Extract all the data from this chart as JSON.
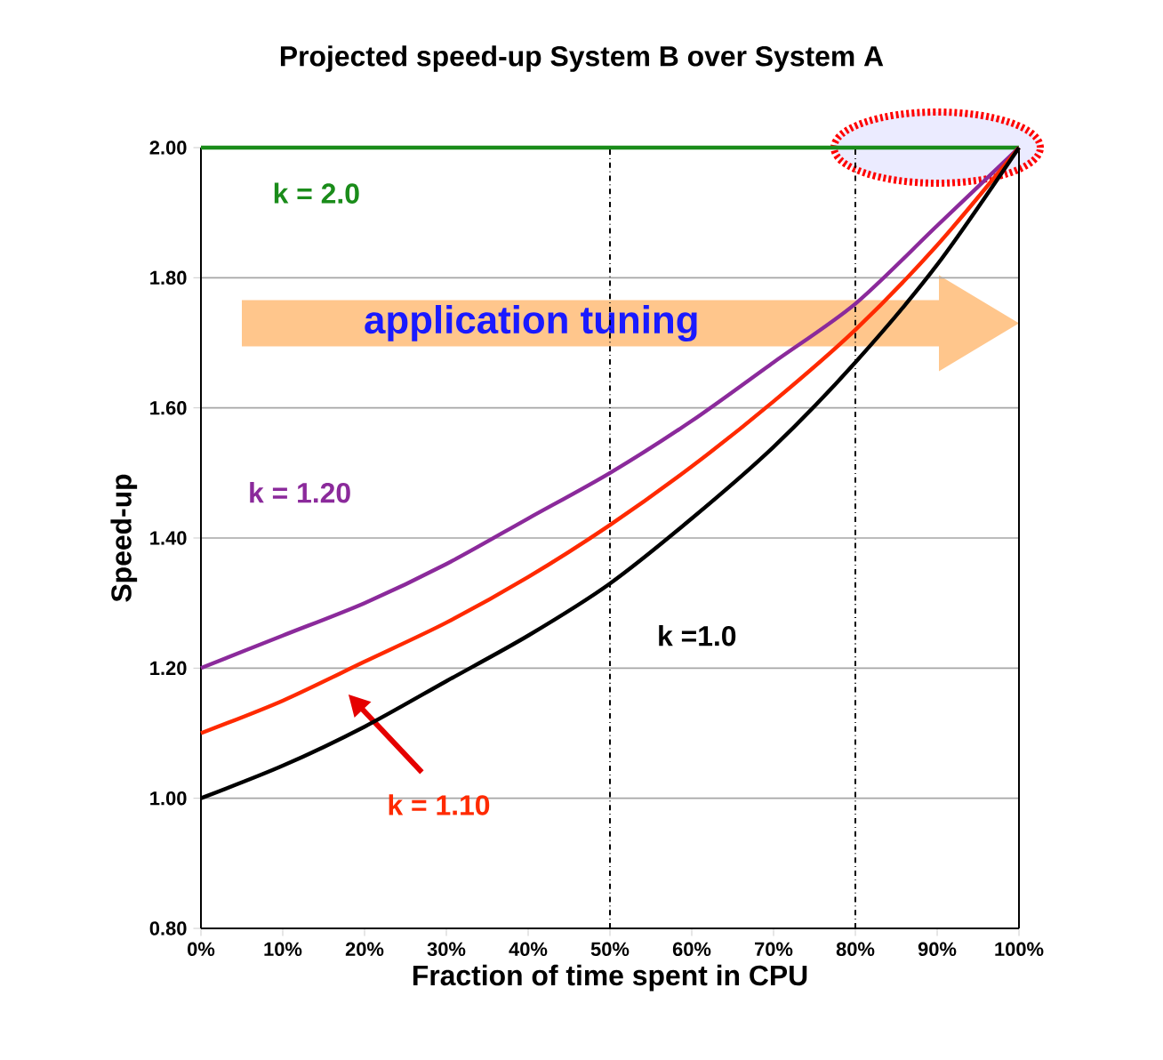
{
  "chart_data": {
    "type": "line",
    "title": "Projected speed-up System B over System A",
    "xlabel": "Fraction of time spent in CPU",
    "ylabel": "Speed-up",
    "x": [
      0,
      10,
      20,
      30,
      40,
      50,
      60,
      70,
      80,
      90,
      100
    ],
    "series": [
      {
        "name": "k = 2.0",
        "color": "#1a8c1a",
        "values": [
          2.0,
          2.0,
          2.0,
          2.0,
          2.0,
          2.0,
          2.0,
          2.0,
          2.0,
          2.0,
          2.0
        ]
      },
      {
        "name": "k = 1.20",
        "color": "#8b2a9b",
        "values": [
          1.2,
          1.25,
          1.3,
          1.36,
          1.43,
          1.5,
          1.58,
          1.67,
          1.76,
          1.88,
          2.0
        ]
      },
      {
        "name": "k = 1.10",
        "color": "#ff2a00",
        "values": [
          1.1,
          1.15,
          1.21,
          1.27,
          1.34,
          1.42,
          1.51,
          1.61,
          1.72,
          1.85,
          2.0
        ]
      },
      {
        "name": "k =1.0",
        "color": "#000000",
        "values": [
          1.0,
          1.05,
          1.11,
          1.18,
          1.25,
          1.33,
          1.43,
          1.54,
          1.67,
          1.82,
          2.0
        ]
      }
    ],
    "xlim": [
      0,
      100
    ],
    "xticks": [
      {
        "value": 0,
        "label": "0%"
      },
      {
        "value": 10,
        "label": "10%"
      },
      {
        "value": 20,
        "label": "20%"
      },
      {
        "value": 30,
        "label": "30%"
      },
      {
        "value": 40,
        "label": "40%"
      },
      {
        "value": 50,
        "label": "50%"
      },
      {
        "value": 60,
        "label": "60%"
      },
      {
        "value": 70,
        "label": "70%"
      },
      {
        "value": 80,
        "label": "80%"
      },
      {
        "value": 90,
        "label": "90%"
      },
      {
        "value": 100,
        "label": "100%"
      }
    ],
    "ylim": [
      0.8,
      2.0
    ],
    "yticks": [
      {
        "value": 0.8,
        "label": "0.80"
      },
      {
        "value": 1.0,
        "label": "1.00"
      },
      {
        "value": 1.2,
        "label": "1.20"
      },
      {
        "value": 1.4,
        "label": "1.40"
      },
      {
        "value": 1.6,
        "label": "1.60"
      },
      {
        "value": 1.8,
        "label": "1.80"
      },
      {
        "value": 2.0,
        "label": "2.00"
      }
    ],
    "grid": "y",
    "legend": false,
    "marker": "none",
    "line_style": "solid",
    "ref_lines": [
      {
        "axis": "x",
        "value": 50,
        "color": "#000000",
        "line_style": "dashed"
      },
      {
        "axis": "x",
        "value": 80,
        "color": "#000000",
        "line_style": "dashed"
      },
      {
        "axis": "x",
        "value": 100,
        "color": "#000000",
        "line_style": "solid"
      }
    ],
    "annotations": [
      "application tuning"
    ]
  }
}
